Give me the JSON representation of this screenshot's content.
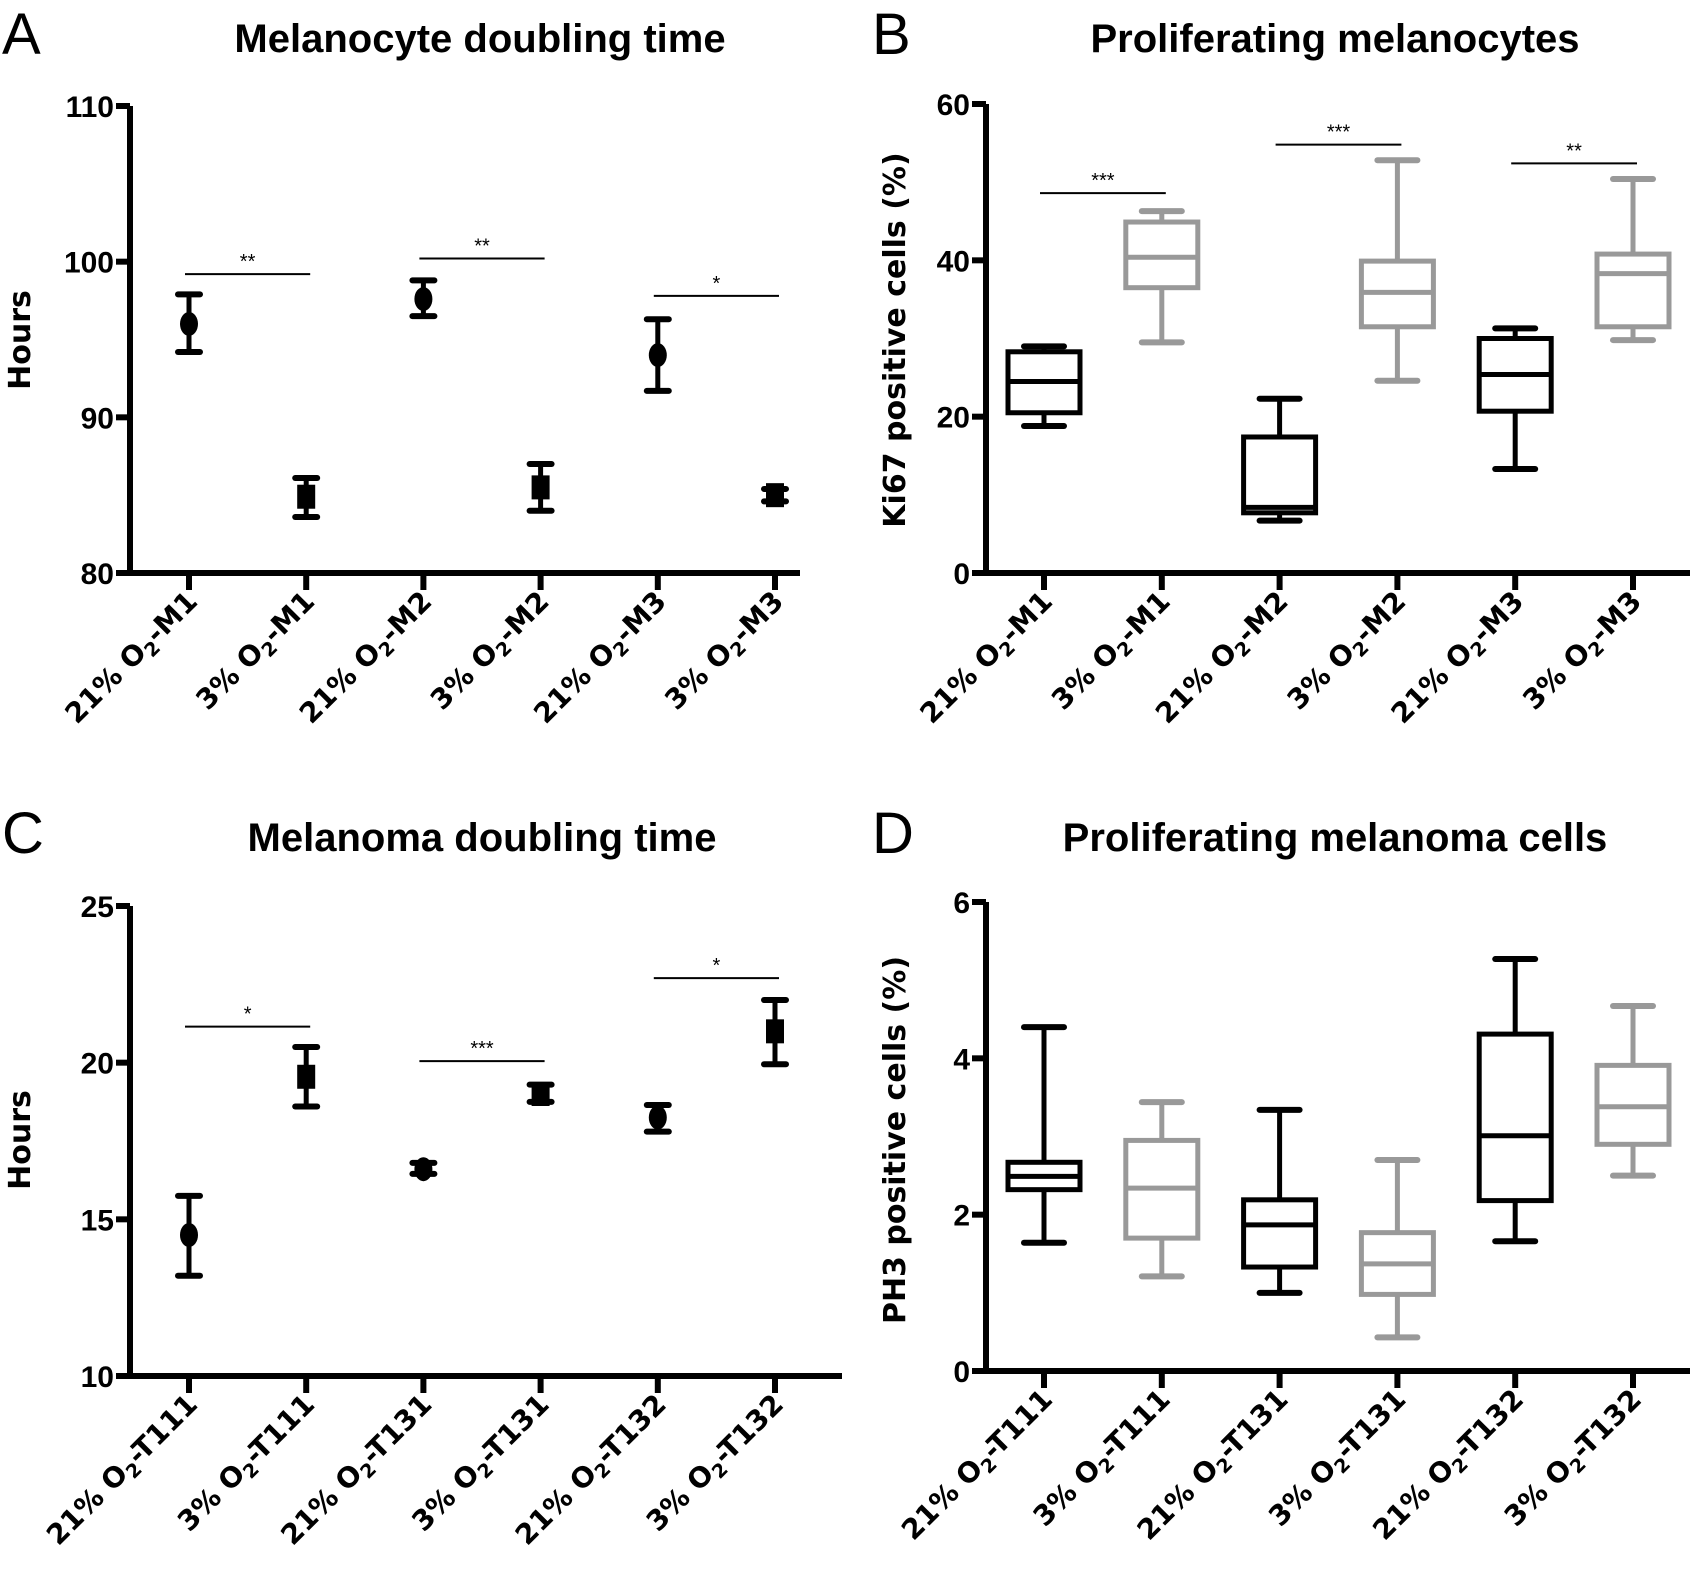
{
  "chart_data": [
    {
      "id": "A",
      "panel_letter": "A",
      "type": "scatter",
      "title": "Melanocyte doubling time",
      "xlabel": "",
      "ylabel": "Hours",
      "ylim": [
        80,
        110
      ],
      "yticks": [
        80,
        90,
        100,
        110
      ],
      "categories": [
        "21% O2-M1",
        "3% O2-M1",
        "21% O2-M2",
        "3% O2-M2",
        "21% O2-M3",
        "3% O2-M3"
      ],
      "category_parts": [
        {
          "prefix": "21% O",
          "sub": "2",
          "suffix": "-M1"
        },
        {
          "prefix": "3% O",
          "sub": "2",
          "suffix": "-M1"
        },
        {
          "prefix": "21% O",
          "sub": "2",
          "suffix": "-M2"
        },
        {
          "prefix": "3% O",
          "sub": "2",
          "suffix": "-M2"
        },
        {
          "prefix": "21% O",
          "sub": "2",
          "suffix": "-M3"
        },
        {
          "prefix": "3% O",
          "sub": "2",
          "suffix": "-M3"
        }
      ],
      "markers": [
        "circle",
        "square",
        "circle",
        "square",
        "circle",
        "square"
      ],
      "values": [
        96.0,
        84.9,
        97.6,
        85.5,
        94.0,
        85.0
      ],
      "error_high": [
        97.9,
        86.1,
        98.8,
        87.0,
        96.3,
        85.4
      ],
      "error_low": [
        94.2,
        83.6,
        96.5,
        84.0,
        91.7,
        84.6
      ],
      "significance": [
        {
          "from": 0,
          "to": 1,
          "y": 99.2,
          "label": "**"
        },
        {
          "from": 2,
          "to": 3,
          "y": 100.2,
          "label": "**"
        },
        {
          "from": 4,
          "to": 5,
          "y": 97.8,
          "label": "*"
        }
      ],
      "grid": false
    },
    {
      "id": "B",
      "panel_letter": "B",
      "type": "box",
      "title": "Proliferating melanocytes",
      "xlabel": "",
      "ylabel": "Ki67 positive cells (%)",
      "ylim": [
        0,
        60
      ],
      "yticks": [
        0,
        20,
        40,
        60
      ],
      "categories": [
        "21% O2-M1",
        "3% O2-M1",
        "21% O2-M2",
        "3% O2-M2",
        "21% O2-M3",
        "3% O2-M3"
      ],
      "category_parts": [
        {
          "prefix": "21% O",
          "sub": "2",
          "suffix": "-M1"
        },
        {
          "prefix": "3% O",
          "sub": "2",
          "suffix": "-M1"
        },
        {
          "prefix": "21% O",
          "sub": "2",
          "suffix": "-M2"
        },
        {
          "prefix": "3% O",
          "sub": "2",
          "suffix": "-M2"
        },
        {
          "prefix": "21% O",
          "sub": "2",
          "suffix": "-M3"
        },
        {
          "prefix": "3% O",
          "sub": "2",
          "suffix": "-M3"
        }
      ],
      "boxes": [
        {
          "min": 18.8,
          "q1": 20.5,
          "median": 24.5,
          "q3": 28.3,
          "max": 29.0,
          "color": "#000000"
        },
        {
          "min": 29.5,
          "q1": 36.5,
          "median": 40.4,
          "q3": 44.9,
          "max": 46.3,
          "color": "#999999"
        },
        {
          "min": 6.7,
          "q1": 7.7,
          "median": 8.4,
          "q3": 17.4,
          "max": 22.3,
          "color": "#000000"
        },
        {
          "min": 24.6,
          "q1": 31.5,
          "median": 35.9,
          "q3": 39.9,
          "max": 52.8,
          "color": "#999999"
        },
        {
          "min": 13.3,
          "q1": 20.7,
          "median": 25.4,
          "q3": 30.0,
          "max": 31.3,
          "color": "#000000"
        },
        {
          "min": 29.8,
          "q1": 31.5,
          "median": 38.3,
          "q3": 40.8,
          "max": 50.4,
          "color": "#999999"
        }
      ],
      "significance": [
        {
          "from": 0,
          "to": 1,
          "y": 48.6,
          "label": "***"
        },
        {
          "from": 2,
          "to": 3,
          "y": 54.8,
          "label": "***"
        },
        {
          "from": 4,
          "to": 5,
          "y": 52.4,
          "label": "**"
        }
      ],
      "grid": false
    },
    {
      "id": "C",
      "panel_letter": "C",
      "type": "scatter",
      "title": "Melanoma doubling time",
      "xlabel": "",
      "ylabel": "Hours",
      "ylim": [
        10,
        25
      ],
      "yticks": [
        10,
        15,
        20,
        25
      ],
      "categories": [
        "21% O2-T111",
        "3% O2-T111",
        "21% O2-T131",
        "3% O2-T131",
        "21% O2-T132",
        "3% O2-T132"
      ],
      "category_parts": [
        {
          "prefix": "21% O",
          "sub": "2",
          "suffix": "-T111"
        },
        {
          "prefix": "3% O",
          "sub": "2",
          "suffix": "-T111"
        },
        {
          "prefix": "21% O",
          "sub": "2",
          "suffix": "-T131"
        },
        {
          "prefix": "3% O",
          "sub": "2",
          "suffix": "-T131"
        },
        {
          "prefix": "21% O",
          "sub": "2",
          "suffix": "-T132"
        },
        {
          "prefix": "3% O",
          "sub": "2",
          "suffix": "-T132"
        }
      ],
      "markers": [
        "circle",
        "square",
        "circle",
        "square",
        "circle",
        "square"
      ],
      "values": [
        14.5,
        19.55,
        16.6,
        19.0,
        18.25,
        21.0
      ],
      "error_high": [
        15.75,
        20.5,
        16.8,
        19.3,
        18.65,
        22.0
      ],
      "error_low": [
        13.2,
        18.6,
        16.45,
        18.75,
        17.8,
        19.95
      ],
      "significance": [
        {
          "from": 0,
          "to": 1,
          "y": 21.15,
          "label": "*"
        },
        {
          "from": 2,
          "to": 3,
          "y": 20.05,
          "label": "***"
        },
        {
          "from": 4,
          "to": 5,
          "y": 22.7,
          "label": "*"
        }
      ],
      "grid": false
    },
    {
      "id": "D",
      "panel_letter": "D",
      "type": "box",
      "title": "Proliferating melanoma cells",
      "xlabel": "",
      "ylabel": "PH3 positive cells (%)",
      "ylim": [
        0,
        6
      ],
      "yticks": [
        0,
        2,
        4,
        6
      ],
      "categories": [
        "21% O2-T111",
        "3% O2-T111",
        "21% O2-T131",
        "3% O2-T131",
        "21% O2-T132",
        "3% O2-T132"
      ],
      "category_parts": [
        {
          "prefix": "21% O",
          "sub": "2",
          "suffix": "-T111"
        },
        {
          "prefix": "3% O",
          "sub": "2",
          "suffix": "-T111"
        },
        {
          "prefix": "21% O",
          "sub": "2",
          "suffix": "-T131"
        },
        {
          "prefix": "3% O",
          "sub": "2",
          "suffix": "-T131"
        },
        {
          "prefix": "21% O",
          "sub": "2",
          "suffix": "-T132"
        },
        {
          "prefix": "3% O",
          "sub": "2",
          "suffix": "-T132"
        }
      ],
      "boxes": [
        {
          "min": 1.64,
          "q1": 2.32,
          "median": 2.49,
          "q3": 2.67,
          "max": 4.4,
          "color": "#000000"
        },
        {
          "min": 1.21,
          "q1": 1.7,
          "median": 2.34,
          "q3": 2.95,
          "max": 3.44,
          "color": "#999999"
        },
        {
          "min": 1.0,
          "q1": 1.33,
          "median": 1.87,
          "q3": 2.19,
          "max": 3.34,
          "color": "#000000"
        },
        {
          "min": 0.43,
          "q1": 0.98,
          "median": 1.37,
          "q3": 1.77,
          "max": 2.7,
          "color": "#999999"
        },
        {
          "min": 1.66,
          "q1": 2.18,
          "median": 3.01,
          "q3": 4.31,
          "max": 5.27,
          "color": "#000000"
        },
        {
          "min": 2.5,
          "q1": 2.9,
          "median": 3.38,
          "q3": 3.91,
          "max": 4.67,
          "color": "#999999"
        }
      ],
      "significance": [],
      "grid": false
    }
  ],
  "colors": {
    "black_series": "#000000",
    "gray_series": "#999999",
    "background": "#ffffff"
  }
}
